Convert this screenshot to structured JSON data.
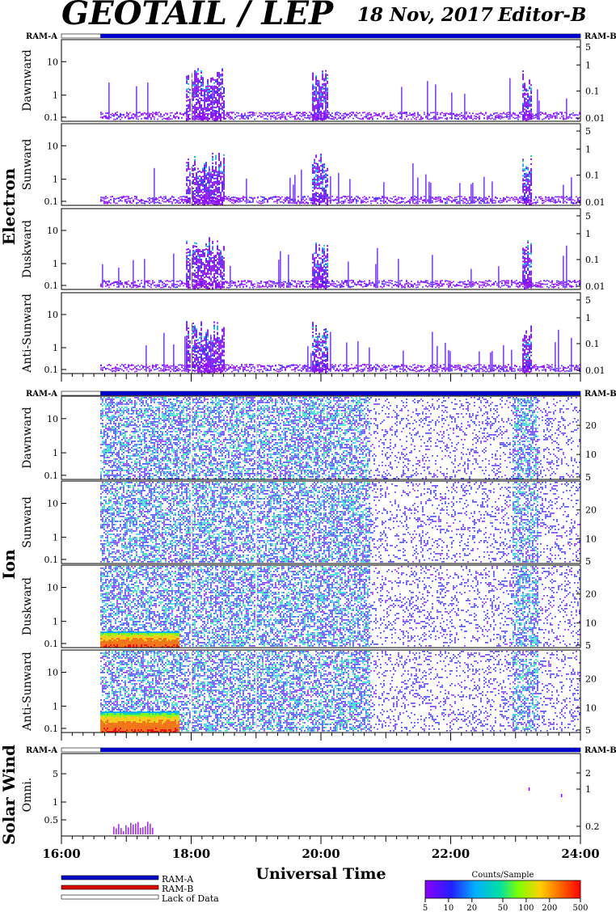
{
  "header": {
    "title": "GEOTAIL / LEP",
    "date": "18 Nov, 2017",
    "editor": "Editor-B"
  },
  "ram_left_label": "RAM-A",
  "ram_right_label": "RAM-B",
  "groups": [
    {
      "name": "Electron",
      "panels": [
        {
          "label": "Dawnward",
          "left_ticks": [
            "10",
            "1",
            "0.1"
          ],
          "right_ticks": [
            "5",
            "1",
            "0.1",
            "0.01"
          ]
        },
        {
          "label": "Sunward",
          "left_ticks": [
            "10",
            "1",
            "0.1"
          ],
          "right_ticks": [
            "5",
            "1",
            "0.1",
            "0.01"
          ]
        },
        {
          "label": "Duskward",
          "left_ticks": [
            "10",
            "1",
            "0.1"
          ],
          "right_ticks": [
            "5",
            "1",
            "0.1",
            "0.01"
          ]
        },
        {
          "label": "Anti-Sunward",
          "left_ticks": [
            "10",
            "1",
            "0.1"
          ],
          "right_ticks": [
            "5",
            "1",
            "0.1",
            "0.01"
          ]
        }
      ]
    },
    {
      "name": "Ion",
      "panels": [
        {
          "label": "Dawnward",
          "left_ticks": [
            "10",
            "1",
            "0.1"
          ],
          "right_ticks": [
            "20",
            "10",
            "5"
          ]
        },
        {
          "label": "Sunward",
          "left_ticks": [
            "10",
            "1",
            "0.1"
          ],
          "right_ticks": [
            "20",
            "10",
            "5"
          ]
        },
        {
          "label": "Duskward",
          "left_ticks": [
            "10",
            "1",
            "0.1"
          ],
          "right_ticks": [
            "20",
            "10",
            "5"
          ]
        },
        {
          "label": "Anti-Sunward",
          "left_ticks": [
            "10",
            "1",
            "0.1"
          ],
          "right_ticks": [
            "20",
            "10",
            "5"
          ]
        }
      ]
    },
    {
      "name": "Solar Wind",
      "panels": [
        {
          "label": "Omni.",
          "left_ticks": [
            "5",
            "1",
            "0.5"
          ],
          "right_ticks": [
            "2",
            "1",
            "0.2"
          ]
        }
      ]
    }
  ],
  "xaxis": {
    "ticks": [
      "16:00",
      "18:00",
      "20:00",
      "22:00",
      "24:00"
    ],
    "title": "Universal Time"
  },
  "legend": {
    "items": [
      {
        "label": "RAM-A",
        "color": "#0000cc"
      },
      {
        "label": "RAM-B",
        "color": "#dd0000"
      },
      {
        "label": "Lack of Data",
        "color": "#ffffff"
      }
    ]
  },
  "colorbar": {
    "title": "Counts/Sample",
    "ticks": [
      "5",
      "10",
      "20",
      "50",
      "100",
      "200",
      "500"
    ],
    "colors": [
      "#8a00ff",
      "#2020ff",
      "#00b0ff",
      "#00e0a0",
      "#80ff00",
      "#ffd000",
      "#ff7000",
      "#ff0000"
    ]
  },
  "chart_data": {
    "type": "heatmap",
    "title": "GEOTAIL / LEP",
    "xlabel": "Universal Time",
    "x_range_hours": [
      16,
      24
    ],
    "data_coverage_hours": [
      16.6,
      24
    ],
    "z_label": "Counts/Sample",
    "z_scale": "log",
    "z_range": [
      5,
      500
    ],
    "electron_activity_hours": [
      {
        "start": 17.9,
        "end": 18.5,
        "peak_counts": 30
      },
      {
        "start": 19.85,
        "end": 20.1,
        "peak_counts": 50
      },
      {
        "start": 23.1,
        "end": 23.25,
        "peak_counts": 50
      }
    ],
    "ion_low_energy_enhancement_hours": {
      "start": 16.6,
      "end": 17.8,
      "peak_counts": 500
    },
    "ion_activity_hours": [
      {
        "start": 16.6,
        "end": 20.7,
        "peak_counts": 50
      },
      {
        "start": 23.0,
        "end": 23.3,
        "peak_counts": 50
      }
    ],
    "solar_wind_events_hours": [
      {
        "start": 16.8,
        "end": 17.4
      },
      {
        "start": 23.2,
        "end": 23.2
      },
      {
        "start": 23.7,
        "end": 23.7
      }
    ]
  }
}
